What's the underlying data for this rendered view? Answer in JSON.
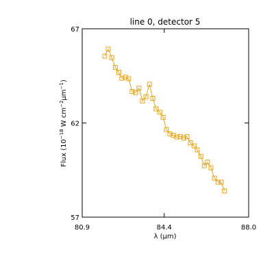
{
  "chart_data": {
    "type": "line",
    "title": "line 0, detector 5",
    "xlabel": "λ (μm)",
    "ylabel_parts": {
      "pre": "Flux (10",
      "exp1": "−18",
      "mid": " W cm",
      "exp2": "−2",
      "mid2": "μm",
      "exp3": "−1",
      "post": ")"
    },
    "xlim": [
      80.9,
      88.0
    ],
    "ylim": [
      57,
      67
    ],
    "xticks": [
      80.9,
      84.4,
      88.0
    ],
    "xtick_labels": [
      "80.9",
      "84.4",
      "88.0"
    ],
    "yticks": [
      57,
      62,
      67
    ],
    "ytick_labels": [
      "57",
      "62",
      "67"
    ],
    "marker": "square",
    "grid": false,
    "colors": {
      "series": "#e8a317",
      "axes": "#000000",
      "background": "#ffffff"
    },
    "series": [
      {
        "x": [
          81.86,
          82.01,
          82.16,
          82.31,
          82.46,
          82.59,
          82.74,
          82.88,
          83.03,
          83.18,
          83.32,
          83.47,
          83.62,
          83.77,
          83.91,
          84.05,
          84.21,
          84.35,
          84.49,
          84.64,
          84.79,
          84.93,
          85.08,
          85.23,
          85.37,
          85.52,
          85.67,
          85.81,
          85.96,
          86.11,
          86.24,
          86.39,
          86.54,
          86.69,
          86.83,
          86.97
        ],
        "y": [
          65.55,
          65.92,
          65.47,
          64.95,
          64.69,
          64.38,
          64.43,
          64.35,
          63.67,
          63.61,
          63.84,
          63.17,
          63.39,
          64.05,
          63.31,
          62.75,
          62.57,
          62.3,
          61.65,
          61.42,
          61.35,
          61.25,
          61.28,
          61.2,
          61.27,
          60.95,
          60.78,
          60.57,
          60.23,
          59.73,
          59.92,
          59.62,
          59.07,
          58.86,
          58.86,
          58.39
        ]
      }
    ]
  }
}
